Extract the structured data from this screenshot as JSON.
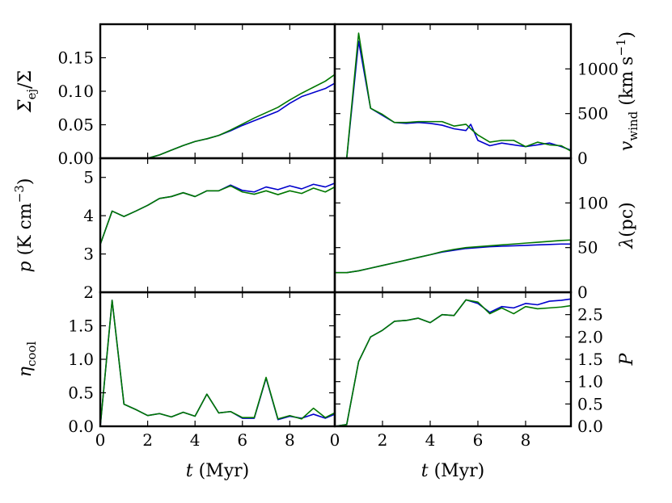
{
  "chart_data": [
    {
      "type": "line",
      "panel": "top-left",
      "ylabel_main": "Σ",
      "ylabel_sub": "ej",
      "ylabel_tail": "/Σ",
      "xlabel": "",
      "xlim": [
        0,
        9.9
      ],
      "ylim": [
        0,
        0.2
      ],
      "yticks": [
        0.0,
        0.05,
        0.1,
        0.15
      ],
      "ytick_labels": [
        "0.00",
        "0.05",
        "0.10",
        "0.15"
      ],
      "series": [
        {
          "name": "blue",
          "color": "#0000cc",
          "x": [
            2.0,
            2.5,
            3.0,
            3.5,
            4.0,
            4.5,
            5.0,
            5.5,
            6.0,
            6.5,
            7.0,
            7.5,
            8.0,
            8.5,
            9.0,
            9.5,
            9.9
          ],
          "values": [
            0.0,
            0.005,
            0.012,
            0.019,
            0.025,
            0.029,
            0.034,
            0.041,
            0.049,
            0.056,
            0.063,
            0.07,
            0.082,
            0.092,
            0.098,
            0.104,
            0.112
          ]
        },
        {
          "name": "green",
          "color": "#007700",
          "x": [
            2.0,
            2.5,
            3.0,
            3.5,
            4.0,
            4.5,
            5.0,
            5.5,
            6.0,
            6.5,
            7.0,
            7.5,
            8.0,
            8.5,
            9.0,
            9.5,
            9.9
          ],
          "values": [
            0.0,
            0.005,
            0.012,
            0.019,
            0.025,
            0.029,
            0.034,
            0.042,
            0.051,
            0.06,
            0.068,
            0.076,
            0.087,
            0.097,
            0.106,
            0.115,
            0.125
          ]
        }
      ]
    },
    {
      "type": "line",
      "panel": "top-right",
      "ylabel_main": "v",
      "ylabel_sub": "wind",
      "ylabel_tail": " (km s",
      "ylabel_sup": "−1",
      "ylabel_end": ")",
      "xlabel": "",
      "xlim": [
        0,
        9.9
      ],
      "ylim": [
        0,
        1500
      ],
      "yticks": [
        0,
        500,
        1000
      ],
      "ytick_labels": [
        "0",
        "500",
        "1000"
      ],
      "series": [
        {
          "name": "blue",
          "color": "#0000cc",
          "x": [
            0.5,
            1.0,
            1.5,
            2.0,
            2.5,
            3.0,
            3.5,
            4.0,
            4.5,
            5.0,
            5.5,
            5.7,
            6.0,
            6.5,
            7.0,
            7.5,
            8.0,
            8.5,
            9.0,
            9.5,
            9.9
          ],
          "values": [
            0,
            1310,
            560,
            480,
            400,
            390,
            400,
            390,
            370,
            330,
            310,
            380,
            200,
            140,
            170,
            150,
            130,
            150,
            170,
            130,
            90
          ]
        },
        {
          "name": "green",
          "color": "#007700",
          "x": [
            0.5,
            1.0,
            1.5,
            2.0,
            2.5,
            3.0,
            3.5,
            4.0,
            4.5,
            5.0,
            5.5,
            5.7,
            6.0,
            6.5,
            7.0,
            7.5,
            8.0,
            8.5,
            9.0,
            9.5,
            9.9
          ],
          "values": [
            0,
            1400,
            560,
            490,
            400,
            400,
            410,
            410,
            410,
            360,
            380,
            330,
            260,
            180,
            200,
            200,
            130,
            180,
            150,
            140,
            80
          ]
        }
      ]
    },
    {
      "type": "line",
      "panel": "middle-left",
      "ylabel_main": "p",
      "ylabel_tail": " (K cm",
      "ylabel_sup": "−3",
      "ylabel_end": ")",
      "xlabel": "",
      "xlim": [
        0,
        9.9
      ],
      "ylim": [
        2,
        5.5
      ],
      "yticks": [
        3,
        4,
        5
      ],
      "ytick_labels": [
        "3",
        "4",
        "5"
      ],
      "series": [
        {
          "name": "blue",
          "color": "#0000cc",
          "x": [
            0.0,
            0.5,
            1.0,
            1.5,
            2.0,
            2.5,
            3.0,
            3.5,
            4.0,
            4.5,
            5.0,
            5.5,
            6.0,
            6.5,
            7.0,
            7.5,
            8.0,
            8.5,
            9.0,
            9.5,
            9.9
          ],
          "values": [
            3.25,
            4.12,
            3.98,
            4.12,
            4.27,
            4.45,
            4.5,
            4.6,
            4.5,
            4.65,
            4.65,
            4.8,
            4.66,
            4.62,
            4.75,
            4.68,
            4.78,
            4.7,
            4.82,
            4.75,
            4.85
          ]
        },
        {
          "name": "green",
          "color": "#007700",
          "x": [
            0.0,
            0.5,
            1.0,
            1.5,
            2.0,
            2.5,
            3.0,
            3.5,
            4.0,
            4.5,
            5.0,
            5.5,
            6.0,
            6.5,
            7.0,
            7.5,
            8.0,
            8.5,
            9.0,
            9.5,
            9.9
          ],
          "values": [
            3.25,
            4.12,
            3.98,
            4.12,
            4.27,
            4.45,
            4.5,
            4.6,
            4.5,
            4.65,
            4.65,
            4.78,
            4.62,
            4.56,
            4.65,
            4.55,
            4.65,
            4.58,
            4.72,
            4.62,
            4.75
          ]
        }
      ]
    },
    {
      "type": "line",
      "panel": "middle-right",
      "ylabel_main": "λ",
      "ylabel_tail": "(pc)",
      "xlabel": "",
      "xlim": [
        0,
        9.9
      ],
      "ylim": [
        0,
        150
      ],
      "yticks": [
        0,
        50,
        100
      ],
      "ytick_labels": [
        "0",
        "50",
        "100"
      ],
      "series": [
        {
          "name": "blue",
          "color": "#0000cc",
          "x": [
            0.0,
            0.5,
            1.0,
            1.5,
            2.0,
            2.5,
            3.0,
            3.5,
            4.0,
            4.5,
            5.0,
            5.5,
            6.0,
            6.5,
            7.0,
            7.5,
            8.0,
            8.5,
            9.0,
            9.5,
            9.9
          ],
          "values": [
            22,
            22,
            24,
            27,
            30,
            33,
            36,
            39,
            42,
            45,
            47,
            49,
            50,
            51,
            51.5,
            52,
            52.5,
            53,
            53.5,
            54,
            54
          ]
        },
        {
          "name": "green",
          "color": "#007700",
          "x": [
            0.0,
            0.5,
            1.0,
            1.5,
            2.0,
            2.5,
            3.0,
            3.5,
            4.0,
            4.5,
            5.0,
            5.5,
            6.0,
            6.5,
            7.0,
            7.5,
            8.0,
            8.5,
            9.0,
            9.5,
            9.9
          ],
          "values": [
            22,
            22,
            24,
            27,
            30,
            33,
            36,
            39,
            42,
            45.5,
            48,
            50,
            51,
            52,
            53,
            54,
            55,
            56,
            57,
            58,
            58.5
          ]
        }
      ]
    },
    {
      "type": "line",
      "panel": "bottom-left",
      "ylabel_main": "η",
      "ylabel_sub": "cool",
      "xlabel_main": "t",
      "xlabel_tail": " (Myr)",
      "xlim": [
        0,
        9.9
      ],
      "ylim": [
        0,
        2
      ],
      "yticks": [
        0.0,
        0.5,
        1.0,
        1.5,
        2.0
      ],
      "ytick_labels": [
        "0.0",
        "0.5",
        "1.0",
        "1.5",
        "2"
      ],
      "xticks": [
        0,
        2,
        4,
        6,
        8
      ],
      "xtick_labels": [
        "0",
        "2",
        "4",
        "6",
        "8"
      ],
      "series": [
        {
          "name": "blue",
          "color": "#0000cc",
          "x": [
            0.0,
            0.5,
            1.0,
            1.5,
            2.0,
            2.5,
            3.0,
            3.5,
            4.0,
            4.5,
            5.0,
            5.5,
            6.0,
            6.5,
            7.0,
            7.5,
            8.0,
            8.5,
            9.0,
            9.5,
            9.9
          ],
          "values": [
            0.0,
            1.88,
            0.33,
            0.25,
            0.16,
            0.19,
            0.14,
            0.21,
            0.15,
            0.48,
            0.2,
            0.22,
            0.12,
            0.12,
            0.72,
            0.1,
            0.15,
            0.12,
            0.18,
            0.12,
            0.18
          ]
        },
        {
          "name": "green",
          "color": "#007700",
          "x": [
            0.0,
            0.5,
            1.0,
            1.5,
            2.0,
            2.5,
            3.0,
            3.5,
            4.0,
            4.5,
            5.0,
            5.5,
            6.0,
            6.5,
            7.0,
            7.5,
            8.0,
            8.5,
            9.0,
            9.5,
            9.9
          ],
          "values": [
            0.0,
            1.88,
            0.33,
            0.25,
            0.16,
            0.19,
            0.14,
            0.21,
            0.15,
            0.48,
            0.2,
            0.22,
            0.13,
            0.13,
            0.73,
            0.11,
            0.16,
            0.11,
            0.27,
            0.13,
            0.2
          ]
        }
      ]
    },
    {
      "type": "line",
      "panel": "bottom-right",
      "ylabel_main": "P",
      "xlabel_main": "t",
      "xlabel_tail": " (Myr)",
      "xlim": [
        0,
        9.9
      ],
      "ylim": [
        0,
        3
      ],
      "yticks": [
        0.0,
        0.5,
        1.0,
        1.5,
        2.0,
        2.5
      ],
      "ytick_labels": [
        "0.0",
        "0.5",
        "1.0",
        "1.5",
        "2.0",
        "2.5"
      ],
      "xticks": [
        0,
        2,
        4,
        6,
        8
      ],
      "xtick_labels": [
        "0",
        "2",
        "4",
        "6",
        "8"
      ],
      "series": [
        {
          "name": "blue",
          "color": "#0000cc",
          "x": [
            0.0,
            0.5,
            1.0,
            1.5,
            2.0,
            2.5,
            3.0,
            3.5,
            4.0,
            4.5,
            5.0,
            5.5,
            6.0,
            6.5,
            7.0,
            7.5,
            8.0,
            8.5,
            9.0,
            9.5,
            9.9
          ],
          "values": [
            0.0,
            0.04,
            1.45,
            2.0,
            2.15,
            2.35,
            2.37,
            2.42,
            2.32,
            2.5,
            2.48,
            2.83,
            2.75,
            2.55,
            2.68,
            2.65,
            2.75,
            2.72,
            2.8,
            2.82,
            2.85
          ]
        },
        {
          "name": "green",
          "color": "#007700",
          "x": [
            0.0,
            0.5,
            1.0,
            1.5,
            2.0,
            2.5,
            3.0,
            3.5,
            4.0,
            4.5,
            5.0,
            5.5,
            6.0,
            6.5,
            7.0,
            7.5,
            8.0,
            8.5,
            9.0,
            9.5,
            9.9
          ],
          "values": [
            0.0,
            0.04,
            1.45,
            2.0,
            2.15,
            2.35,
            2.37,
            2.42,
            2.32,
            2.5,
            2.48,
            2.83,
            2.78,
            2.52,
            2.65,
            2.52,
            2.68,
            2.63,
            2.65,
            2.67,
            2.7
          ]
        }
      ]
    }
  ]
}
